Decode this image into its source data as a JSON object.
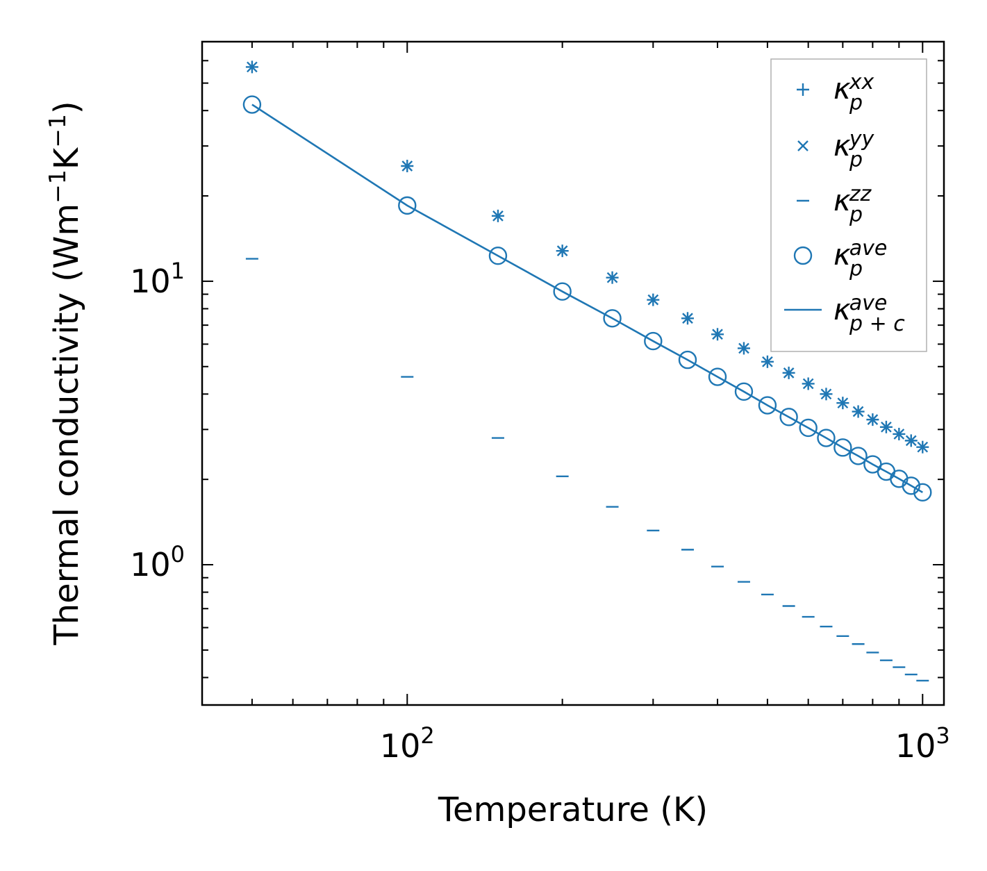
{
  "chart_data": {
    "type": "scatter",
    "xscale": "log",
    "yscale": "log",
    "xlabel": "Temperature (K)",
    "ylabel_parts": [
      "Thermal conductivity (Wm",
      "−1",
      "K",
      "−1",
      ")"
    ],
    "xlim": [
      40,
      1100
    ],
    "ylim": [
      0.32,
      70
    ],
    "x_ticks": [
      {
        "base": "10",
        "exp": "2",
        "value": 100
      },
      {
        "base": "10",
        "exp": "3",
        "value": 1000
      }
    ],
    "y_ticks": [
      {
        "base": "10",
        "exp": "0",
        "value": 1
      },
      {
        "base": "10",
        "exp": "1",
        "value": 10
      }
    ],
    "legend_position": "upper right",
    "color": "#1f77b4",
    "x": [
      50,
      100,
      150,
      200,
      250,
      300,
      350,
      400,
      450,
      500,
      550,
      600,
      650,
      700,
      750,
      800,
      850,
      900,
      950,
      1000
    ],
    "series": [
      {
        "name": "kappa_p_xx",
        "label_base": "κ",
        "label_sub": "p",
        "label_sup": "xx",
        "marker": "plus",
        "values": [
          57,
          25.5,
          17.0,
          12.8,
          10.3,
          8.6,
          7.4,
          6.5,
          5.8,
          5.2,
          4.75,
          4.35,
          4.0,
          3.72,
          3.47,
          3.25,
          3.06,
          2.89,
          2.74,
          2.6
        ]
      },
      {
        "name": "kappa_p_yy",
        "label_base": "κ",
        "label_sub": "p",
        "label_sup": "yy",
        "marker": "x",
        "values": [
          57,
          25.5,
          17.0,
          12.8,
          10.3,
          8.6,
          7.4,
          6.5,
          5.8,
          5.2,
          4.75,
          4.35,
          4.0,
          3.72,
          3.47,
          3.25,
          3.06,
          2.89,
          2.74,
          2.6
        ]
      },
      {
        "name": "kappa_p_zz",
        "label_base": "κ",
        "label_sub": "p",
        "label_sup": "zz",
        "marker": "hline",
        "values": [
          12.0,
          4.6,
          2.8,
          2.05,
          1.6,
          1.32,
          1.13,
          0.985,
          0.87,
          0.785,
          0.715,
          0.655,
          0.605,
          0.56,
          0.525,
          0.49,
          0.46,
          0.435,
          0.41,
          0.39
        ]
      },
      {
        "name": "kappa_p_ave",
        "label_base": "κ",
        "label_sub": "p",
        "label_sup": "ave",
        "marker": "circle",
        "values": [
          42,
          18.5,
          12.3,
          9.2,
          7.4,
          6.15,
          5.28,
          4.6,
          4.08,
          3.65,
          3.32,
          3.04,
          2.8,
          2.59,
          2.42,
          2.26,
          2.13,
          2.01,
          1.9,
          1.8
        ]
      },
      {
        "name": "kappa_pc_ave",
        "label_base": "κ",
        "label_sub": "p + c",
        "label_sup": "ave",
        "marker": "line",
        "values": [
          42,
          18.5,
          12.3,
          9.2,
          7.4,
          6.15,
          5.28,
          4.6,
          4.08,
          3.65,
          3.32,
          3.04,
          2.8,
          2.59,
          2.42,
          2.26,
          2.13,
          2.01,
          1.9,
          1.8
        ]
      }
    ]
  }
}
